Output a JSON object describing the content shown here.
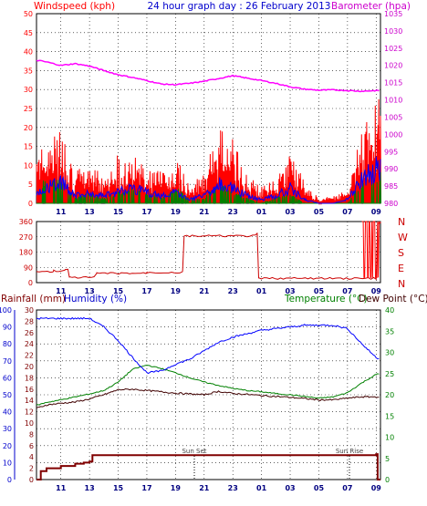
{
  "header": {
    "left_label": "Windspeed (kph)",
    "center_title": "24 hour graph day : 26 February 2013",
    "right_label": "Barometer (hpa)"
  },
  "bottom_labels": {
    "rain": "Rainfall (mm)",
    "humidity": "Humidity (%)",
    "temperature": "Temperature (°C)",
    "dewpoint": "Dew Point (°C)"
  },
  "annotations": {
    "sunset": "Sun Set",
    "sunrise": "Sun Rise"
  },
  "colors": {
    "wind": "#ff0000",
    "wind_avg": "#0000ff",
    "wind_low": "#008000",
    "barometer": "#ff00ff",
    "direction": "#cc0000",
    "rain": "#800000",
    "humidity": "#0000ff",
    "temperature": "#008000",
    "dewpoint": "#400000",
    "grid": "#000000"
  },
  "chart_data": [
    {
      "type": "line",
      "name": "wind_and_barometer",
      "x_ticks": [
        "11",
        "13",
        "15",
        "17",
        "19",
        "21",
        "23",
        "01",
        "03",
        "05",
        "07",
        "09"
      ],
      "x_hour_range": [
        9.3,
        33.3
      ],
      "y_left_ticks": [
        0,
        5,
        10,
        15,
        20,
        25,
        30,
        35,
        40,
        45,
        50
      ],
      "y_right_ticks": [
        980,
        985,
        990,
        995,
        1000,
        1005,
        1010,
        1015,
        1020,
        1025,
        1030,
        1035
      ],
      "ylim_left": [
        0,
        50
      ],
      "ylim_right": [
        980,
        1035
      ],
      "barometer": {
        "x": [
          9.3,
          10,
          11,
          12,
          13,
          14,
          15,
          16,
          17,
          18,
          19,
          20,
          21,
          22,
          23,
          24,
          25,
          26,
          27,
          28,
          29,
          30,
          31,
          32,
          33,
          33.3
        ],
        "y": [
          1021.5,
          1021.0,
          1020.0,
          1020.5,
          1019.8,
          1018.5,
          1017.3,
          1016.5,
          1015.6,
          1014.6,
          1014.4,
          1014.8,
          1015.4,
          1016.2,
          1017.0,
          1016.3,
          1015.6,
          1014.8,
          1013.8,
          1013.1,
          1012.8,
          1012.9,
          1012.7,
          1012.5,
          1012.7,
          1012.6
        ]
      },
      "wind_gust_hourly": {
        "x": [
          9.3,
          10,
          11,
          12,
          13,
          14,
          15,
          16,
          17,
          18,
          19,
          20,
          21,
          22,
          23,
          24,
          25,
          26,
          27,
          28,
          29,
          30,
          31,
          32,
          33,
          33.3
        ],
        "y": [
          11,
          13,
          17,
          7,
          9,
          6,
          11,
          12,
          9,
          7,
          10,
          5,
          7,
          17,
          15,
          6,
          4,
          6,
          11,
          5,
          1,
          2,
          3,
          18,
          22,
          24
        ]
      },
      "wind_avg_hourly": {
        "x": [
          9.3,
          10,
          11,
          12,
          13,
          14,
          15,
          16,
          17,
          18,
          19,
          20,
          21,
          22,
          23,
          24,
          25,
          26,
          27,
          28,
          29,
          30,
          31,
          32,
          33,
          33.3
        ],
        "y": [
          3,
          4,
          6,
          2,
          3,
          2,
          3,
          4,
          3,
          2,
          3,
          1,
          2,
          5,
          4,
          2,
          1,
          2,
          4,
          1,
          0,
          0,
          1,
          6,
          9,
          9
        ]
      },
      "wind_low_hourly": {
        "x": [
          9.3,
          10,
          11,
          12,
          13,
          14,
          15,
          16,
          17,
          18,
          19,
          20,
          21,
          22,
          23,
          24,
          25,
          26,
          27,
          28,
          29,
          30,
          31,
          32,
          33,
          33.3
        ],
        "y": [
          2,
          5,
          4,
          1,
          2,
          1,
          2,
          3,
          2,
          1,
          3,
          1,
          1,
          4,
          2,
          1,
          0,
          1,
          2,
          0,
          0,
          0,
          0,
          4,
          5,
          6
        ]
      }
    },
    {
      "type": "line",
      "name": "wind_direction",
      "y_ticks": [
        0,
        90,
        180,
        270,
        360
      ],
      "compass": [
        "N",
        "W",
        "S",
        "E",
        "N"
      ],
      "ylim": [
        0,
        360
      ],
      "direction": {
        "x": [
          9.3,
          10.5,
          11.3,
          11.6,
          13.5,
          17,
          19.5,
          19.6,
          24.7,
          24.8,
          33.0,
          33.1,
          33.3
        ],
        "y": [
          65,
          70,
          75,
          30,
          55,
          60,
          75,
          275,
          290,
          25,
          20,
          350,
          360
        ]
      }
    },
    {
      "type": "line",
      "name": "temp_humidity_rain",
      "y_left_ticks": [
        0,
        10,
        20,
        30,
        40,
        50,
        60,
        70,
        80,
        90,
        100
      ],
      "y_left2_ticks": [
        0,
        2,
        4,
        6,
        8,
        10,
        12,
        14,
        16,
        18,
        20,
        22,
        24,
        26,
        28,
        30
      ],
      "y_right_ticks": [
        0,
        5,
        10,
        15,
        20,
        25,
        30,
        35,
        40
      ],
      "ylim_humidity": [
        0,
        100
      ],
      "ylim_rain": [
        0,
        30
      ],
      "ylim_temp": [
        0,
        40
      ],
      "humidity": {
        "x": [
          9.3,
          10,
          11,
          12,
          13,
          14,
          15,
          16,
          17,
          18,
          19,
          20,
          21,
          22,
          23,
          24,
          25,
          26,
          27,
          28,
          29,
          30,
          31,
          32,
          33,
          33.3
        ],
        "y": [
          95,
          95,
          95,
          95,
          95,
          90,
          82,
          72,
          63,
          64,
          68,
          71,
          76,
          81,
          84,
          86,
          88,
          89,
          90,
          91,
          91,
          91,
          89,
          80,
          72,
          71
        ]
      },
      "temperature": {
        "x": [
          9.3,
          10,
          11,
          12,
          13,
          14,
          15,
          16,
          17,
          18,
          19,
          20,
          21,
          22,
          23,
          24,
          25,
          26,
          27,
          28,
          29,
          30,
          31,
          32,
          33,
          33.3
        ],
        "y": [
          17.5,
          18.2,
          18.8,
          19.5,
          20.2,
          21.0,
          23.0,
          26.0,
          27.0,
          26.2,
          25.2,
          24.0,
          23.0,
          22.2,
          21.5,
          21.0,
          20.7,
          20.3,
          20.0,
          19.6,
          19.2,
          19.5,
          20.5,
          22.8,
          24.8,
          25.0
        ]
      },
      "dewpoint": {
        "x": [
          9.3,
          10,
          11,
          12,
          13,
          14,
          15,
          16,
          17,
          18,
          19,
          20,
          21,
          22,
          23,
          24,
          25,
          26,
          27,
          28,
          29,
          30,
          31,
          32,
          33,
          33.3
        ],
        "y": [
          16.8,
          17.6,
          18.0,
          18.3,
          19.0,
          20.0,
          21.2,
          21.3,
          21.0,
          20.7,
          20.4,
          20.2,
          20.0,
          20.8,
          20.3,
          20.1,
          19.8,
          19.6,
          19.4,
          19.1,
          18.8,
          18.8,
          19.2,
          19.5,
          19.5,
          19.5
        ]
      },
      "rainfall": {
        "x": [
          9.3,
          9.6,
          10,
          11,
          12,
          12.6,
          13,
          13.2,
          33.0,
          33.1,
          33.3
        ],
        "y": [
          0,
          1.5,
          2,
          2.4,
          2.8,
          3.0,
          3.2,
          4.3,
          4.5,
          0,
          0
        ]
      }
    }
  ]
}
